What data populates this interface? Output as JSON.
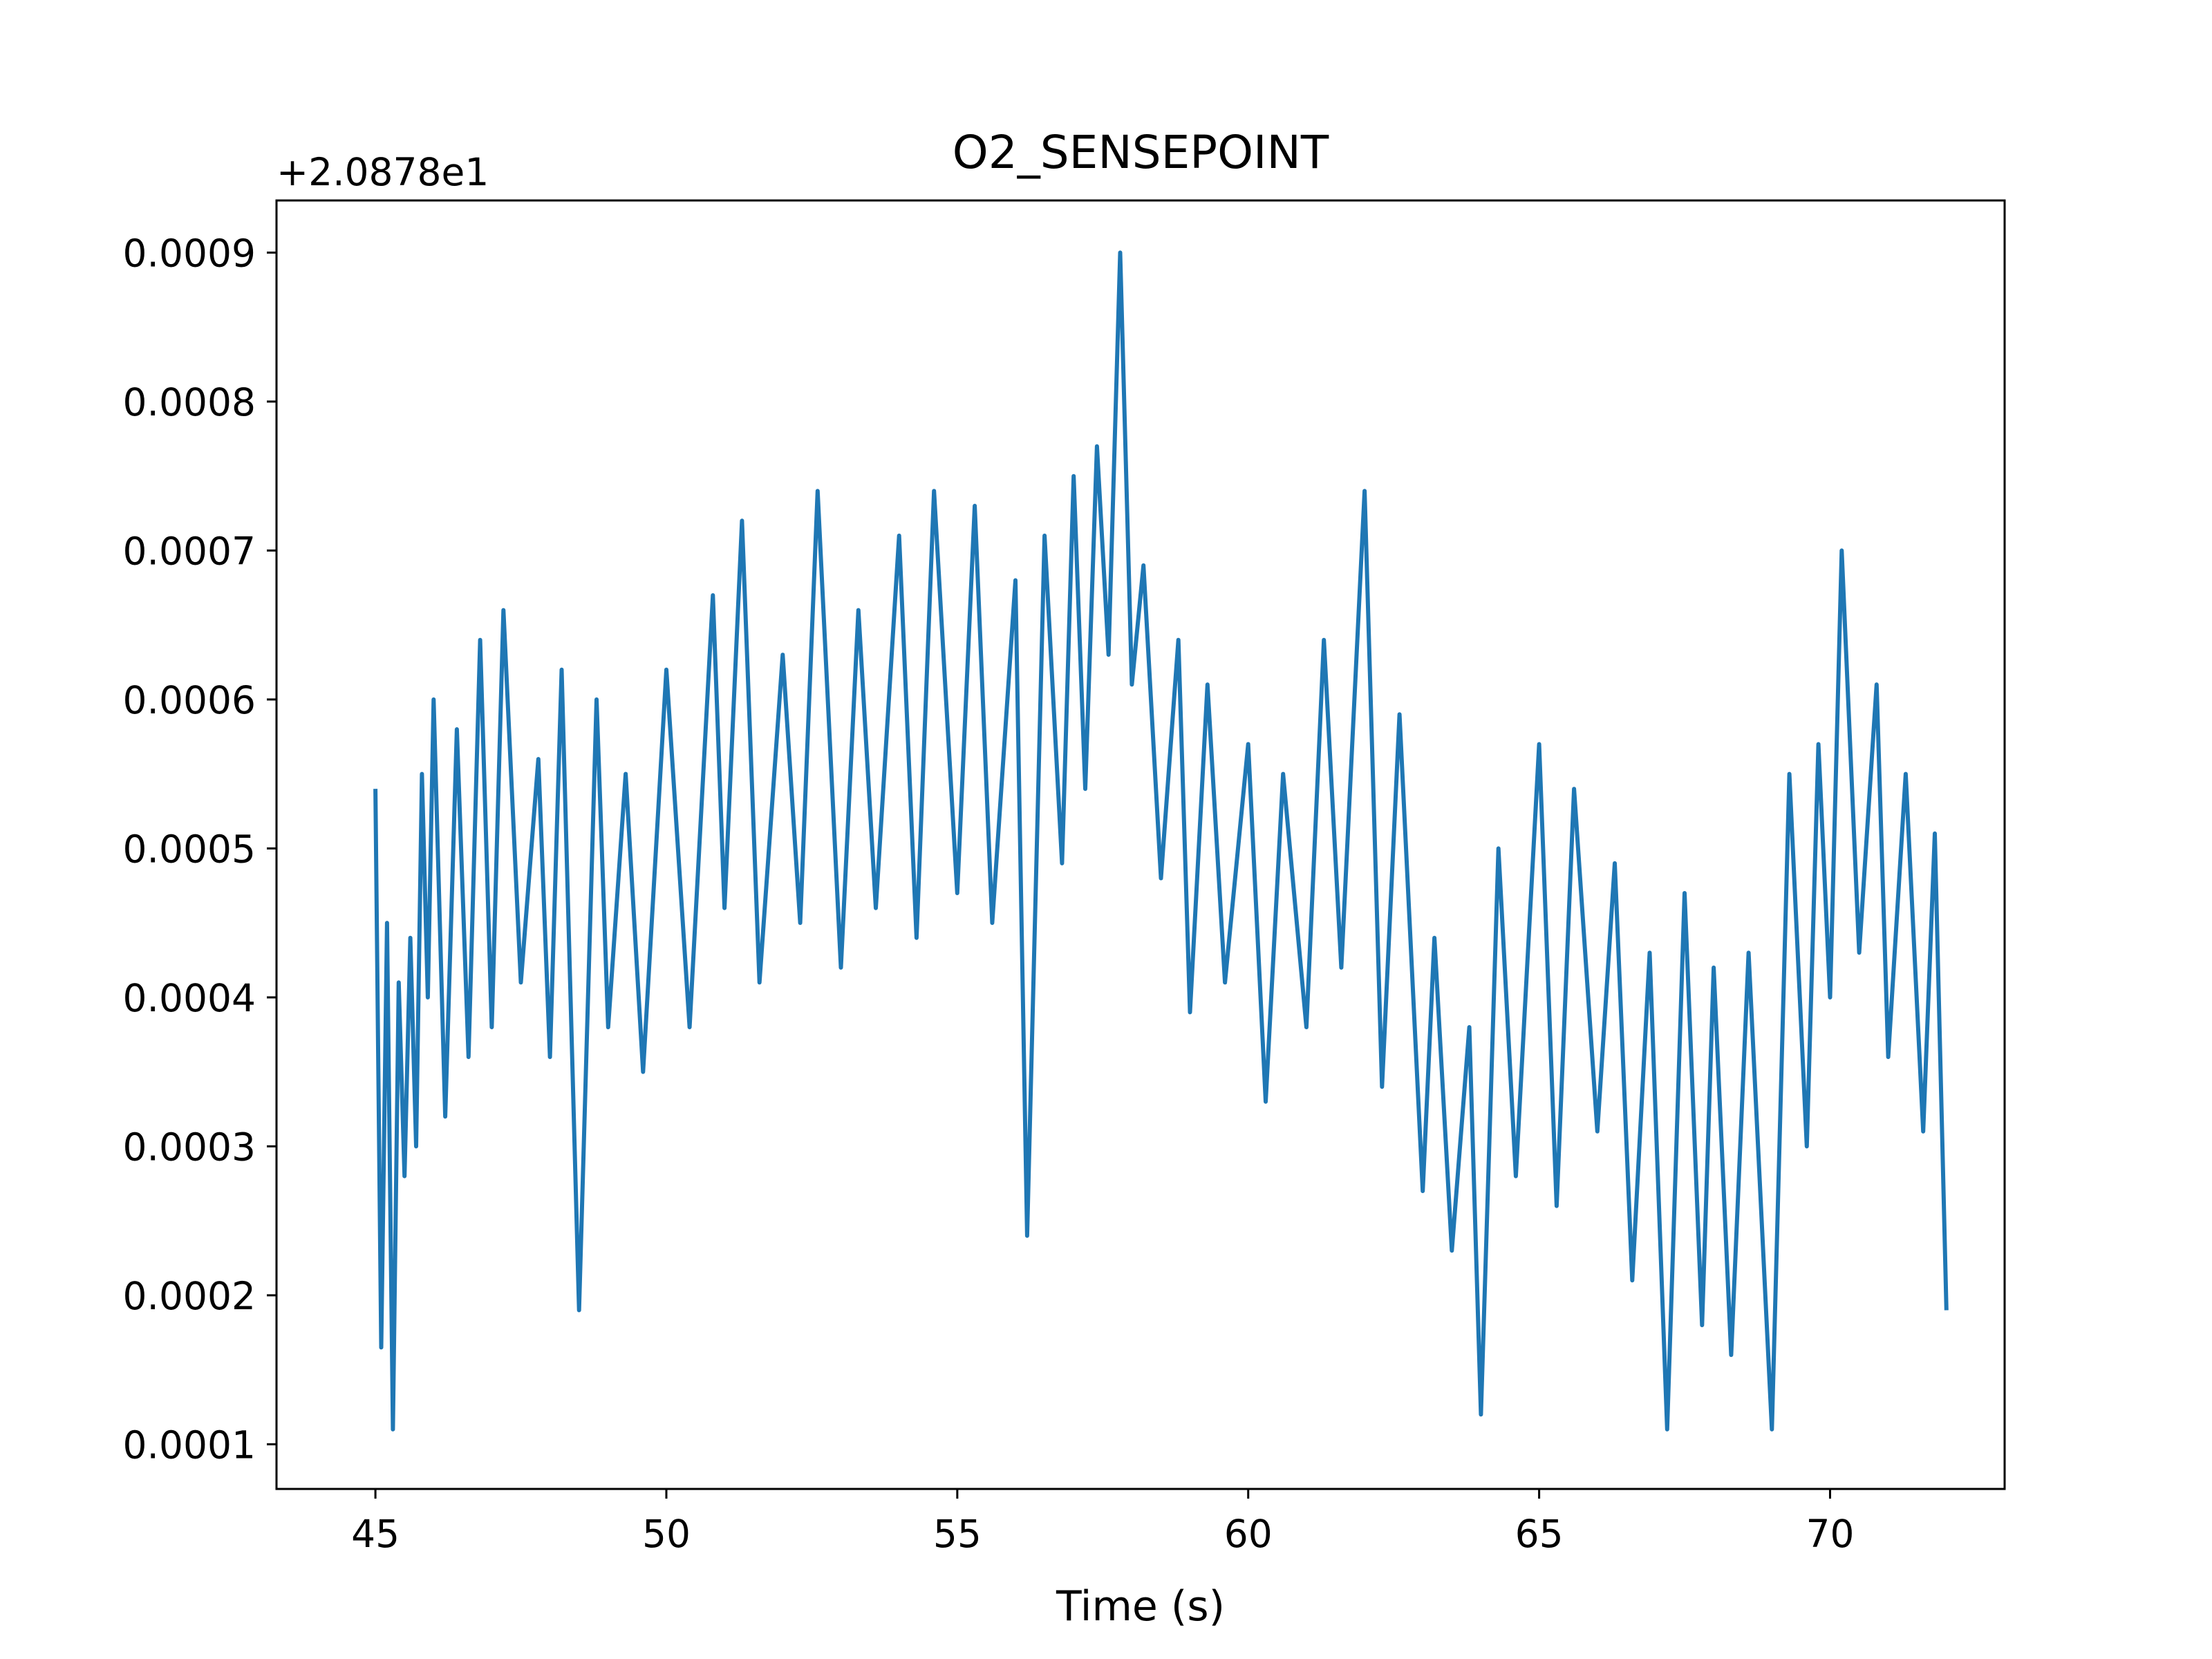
{
  "chart_data": {
    "type": "line",
    "title": "O2_SENSEPOINT",
    "xlabel": "Time (s)",
    "ylabel": "",
    "offset_text": "+2.0878e1",
    "y_offset": 20.878,
    "xlim": [
      43.3,
      73.0
    ],
    "ylim": [
      7e-05,
      0.000935
    ],
    "xticks": [
      45,
      50,
      55,
      60,
      65,
      70
    ],
    "xtick_labels": [
      "45",
      "50",
      "55",
      "60",
      "65",
      "70"
    ],
    "yticks": [
      0.0001,
      0.0002,
      0.0003,
      0.0004,
      0.0005,
      0.0006,
      0.0007,
      0.0008,
      0.0009
    ],
    "ytick_labels": [
      "0.0001",
      "0.0002",
      "0.0003",
      "0.0004",
      "0.0005",
      "0.0006",
      "0.0007",
      "0.0008",
      "0.0009"
    ],
    "grid": false,
    "series": [
      {
        "color": "#1f77b4",
        "x": [
          45.0,
          45.1,
          45.2,
          45.3,
          45.4,
          45.5,
          45.6,
          45.7,
          45.8,
          45.9,
          46.0,
          46.2,
          46.4,
          46.6,
          46.8,
          47.0,
          47.2,
          47.5,
          47.8,
          48.0,
          48.2,
          48.5,
          48.8,
          49.0,
          49.3,
          49.6,
          50.0,
          50.4,
          50.8,
          51.0,
          51.3,
          51.6,
          52.0,
          52.3,
          52.6,
          53.0,
          53.3,
          53.6,
          54.0,
          54.3,
          54.6,
          55.0,
          55.3,
          55.6,
          56.0,
          56.2,
          56.5,
          56.8,
          57.0,
          57.2,
          57.4,
          57.6,
          57.8,
          58.0,
          58.2,
          58.5,
          58.8,
          59.0,
          59.3,
          59.6,
          60.0,
          60.3,
          60.6,
          61.0,
          61.3,
          61.6,
          62.0,
          62.3,
          62.6,
          63.0,
          63.2,
          63.5,
          63.8,
          64.0,
          64.3,
          64.6,
          65.0,
          65.3,
          65.6,
          66.0,
          66.3,
          66.6,
          66.9,
          67.2,
          67.5,
          67.8,
          68.0,
          68.3,
          68.6,
          69.0,
          69.3,
          69.6,
          69.8,
          70.0,
          70.2,
          70.5,
          70.8,
          71.0,
          71.3,
          71.6,
          71.8,
          72.0
        ],
        "y": [
          0.00054,
          0.000165,
          0.00045,
          0.00011,
          0.00041,
          0.00028,
          0.00044,
          0.0003,
          0.00055,
          0.0004,
          0.0006,
          0.00032,
          0.00058,
          0.00036,
          0.00064,
          0.00038,
          0.00066,
          0.00041,
          0.00056,
          0.00036,
          0.00062,
          0.00019,
          0.0006,
          0.00038,
          0.00055,
          0.00035,
          0.00062,
          0.00038,
          0.00067,
          0.00046,
          0.00072,
          0.00041,
          0.00063,
          0.00045,
          0.00074,
          0.00042,
          0.00066,
          0.00046,
          0.00071,
          0.00044,
          0.00074,
          0.00047,
          0.00073,
          0.00045,
          0.00068,
          0.00024,
          0.00071,
          0.00049,
          0.00075,
          0.00054,
          0.00077,
          0.00063,
          0.0009,
          0.00061,
          0.00069,
          0.00048,
          0.00064,
          0.00039,
          0.00061,
          0.00041,
          0.00057,
          0.00033,
          0.00055,
          0.00038,
          0.00064,
          0.00042,
          0.00074,
          0.00034,
          0.00059,
          0.00027,
          0.00044,
          0.00023,
          0.00038,
          0.00012,
          0.0005,
          0.00028,
          0.00057,
          0.00026,
          0.00054,
          0.00031,
          0.00049,
          0.00021,
          0.00043,
          0.00011,
          0.00047,
          0.00018,
          0.00042,
          0.00016,
          0.00043,
          0.00011,
          0.00055,
          0.0003,
          0.00057,
          0.0004,
          0.0007,
          0.00043,
          0.00061,
          0.00036,
          0.00055,
          0.00031,
          0.00051,
          0.00019
        ]
      }
    ]
  }
}
